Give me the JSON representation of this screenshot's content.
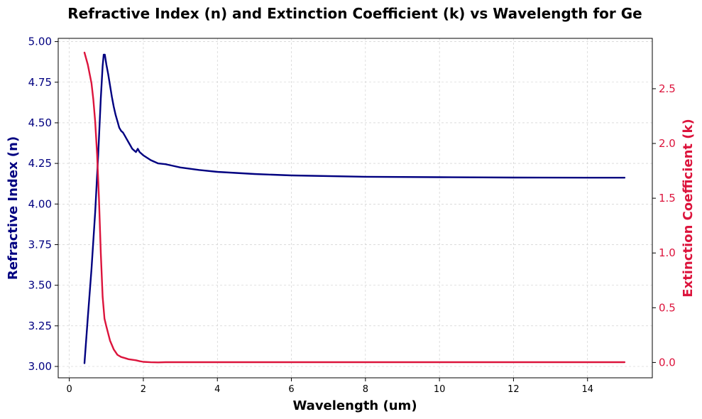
{
  "chart_data": {
    "type": "line",
    "title": "Refractive Index (n) and Extinction Coefficient (k) vs Wavelength for Ge",
    "xlabel": "Wavelength (um)",
    "ylabel_left": "Refractive Index (n)",
    "ylabel_right": "Extinction Coefficient (k)",
    "xlim": [
      -0.3,
      15.75
    ],
    "ylim_left": [
      2.93,
      5.02
    ],
    "ylim_right": [
      -0.14,
      2.96
    ],
    "x_ticks": [
      "0",
      "2",
      "4",
      "6",
      "8",
      "10",
      "12",
      "14"
    ],
    "y_left_ticks": [
      "3.00",
      "3.25",
      "3.50",
      "3.75",
      "4.00",
      "4.25",
      "4.50",
      "4.75",
      "5.00"
    ],
    "y_right_ticks": [
      "0.0",
      "0.5",
      "1.0",
      "1.5",
      "2.0",
      "2.5"
    ],
    "grid": true,
    "colors": {
      "n": "#000080",
      "k": "#DC143C",
      "grid": "#c8c8c8"
    },
    "series": [
      {
        "axis": "left",
        "color": "#000080",
        "x": [
          0.41,
          0.5,
          0.6,
          0.7,
          0.78,
          0.85,
          0.9,
          0.93,
          0.96,
          1.0,
          1.05,
          1.1,
          1.15,
          1.2,
          1.25,
          1.3,
          1.35,
          1.4,
          1.45,
          1.5,
          1.55,
          1.6,
          1.65,
          1.7,
          1.75,
          1.8,
          1.85,
          1.9,
          2.0,
          2.2,
          2.4,
          2.6,
          2.8,
          3.0,
          3.5,
          4.0,
          5.0,
          6.0,
          8.0,
          10.0,
          12.0,
          14.0,
          15.0
        ],
        "y": [
          3.02,
          3.3,
          3.6,
          3.95,
          4.3,
          4.65,
          4.85,
          4.92,
          4.92,
          4.86,
          4.8,
          4.73,
          4.66,
          4.6,
          4.55,
          4.51,
          4.47,
          4.45,
          4.44,
          4.42,
          4.4,
          4.38,
          4.36,
          4.34,
          4.33,
          4.32,
          4.34,
          4.32,
          4.3,
          4.27,
          4.25,
          4.245,
          4.235,
          4.225,
          4.21,
          4.198,
          4.185,
          4.176,
          4.168,
          4.165,
          4.163,
          4.162,
          4.162
        ]
      },
      {
        "axis": "right",
        "color": "#DC143C",
        "x": [
          0.41,
          0.5,
          0.6,
          0.65,
          0.7,
          0.75,
          0.8,
          0.85,
          0.9,
          0.95,
          1.0,
          1.1,
          1.2,
          1.3,
          1.4,
          1.5,
          1.6,
          1.7,
          1.8,
          1.9,
          2.0,
          2.2,
          2.4,
          2.6,
          3.0,
          4.0,
          6.0,
          8.0,
          10.0,
          12.0,
          14.0,
          15.0
        ],
        "y": [
          2.83,
          2.72,
          2.55,
          2.4,
          2.2,
          1.9,
          1.5,
          1.0,
          0.6,
          0.4,
          0.33,
          0.2,
          0.12,
          0.07,
          0.05,
          0.04,
          0.03,
          0.025,
          0.02,
          0.012,
          0.006,
          0.002,
          0.001,
          0.003,
          0.003,
          0.003,
          0.003,
          0.003,
          0.003,
          0.003,
          0.003,
          0.003
        ]
      }
    ]
  }
}
